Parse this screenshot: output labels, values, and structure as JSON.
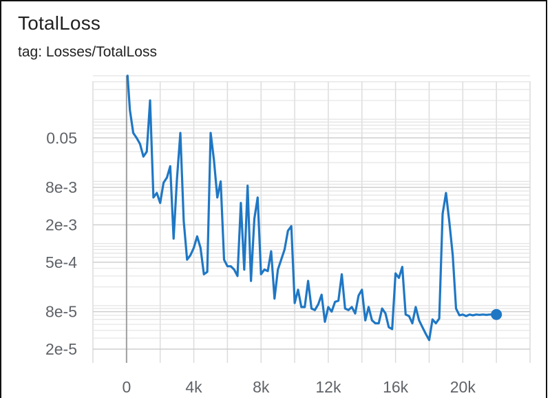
{
  "card": {
    "title": "TotalLoss",
    "subtitle": "tag: Losses/TotalLoss"
  },
  "chart_data": {
    "type": "line",
    "title": "TotalLoss",
    "subtitle": "tag: Losses/TotalLoss",
    "xlabel": "",
    "ylabel": "",
    "yscale": "log",
    "xlim": [
      -2000,
      24000
    ],
    "ylim": [
      1.2e-05,
      0.5
    ],
    "grid": true,
    "x_ticks": [
      {
        "value": 0,
        "label": "0"
      },
      {
        "value": 4000,
        "label": "4k"
      },
      {
        "value": 8000,
        "label": "8k"
      },
      {
        "value": 12000,
        "label": "12k"
      },
      {
        "value": 16000,
        "label": "16k"
      },
      {
        "value": 20000,
        "label": "20k"
      }
    ],
    "y_ticks": [
      {
        "value": 0.05,
        "label": "0.05"
      },
      {
        "value": 0.008,
        "label": "8e-3"
      },
      {
        "value": 0.002,
        "label": "2e-3"
      },
      {
        "value": 0.0005,
        "label": "5e-4"
      },
      {
        "value": 8e-05,
        "label": "8e-5"
      },
      {
        "value": 2e-05,
        "label": "2e-5"
      }
    ],
    "line_color": "#1f77c4",
    "series": [
      {
        "name": "",
        "x": [
          60,
          200,
          400,
          600,
          800,
          1000,
          1200,
          1400,
          1600,
          1800,
          2000,
          2200,
          2400,
          2600,
          2800,
          3000,
          3200,
          3400,
          3600,
          3800,
          4000,
          4200,
          4400,
          4600,
          4800,
          5000,
          5200,
          5400,
          5600,
          5800,
          6000,
          6200,
          6400,
          6600,
          6800,
          7000,
          7200,
          7400,
          7600,
          7800,
          8000,
          8200,
          8400,
          8600,
          8800,
          9000,
          9200,
          9400,
          9600,
          9800,
          10000,
          10200,
          10400,
          10600,
          10800,
          11000,
          11200,
          11400,
          11600,
          11800,
          12000,
          12200,
          12400,
          12600,
          12800,
          13000,
          13200,
          13400,
          13600,
          13800,
          14000,
          14200,
          14400,
          14600,
          14800,
          15000,
          15200,
          15400,
          15600,
          15800,
          16000,
          16200,
          16400,
          16600,
          16800,
          17000,
          17200,
          17400,
          17600,
          17800,
          18000,
          18200,
          18400,
          18600,
          18800,
          19000,
          19200,
          19400,
          19600,
          19800,
          20000,
          20200,
          20400,
          20600,
          20800,
          21000,
          21200,
          21400,
          21600,
          21800,
          22000
        ],
        "y": [
          0.5,
          0.14,
          0.06,
          0.05,
          0.04,
          0.025,
          0.03,
          0.2,
          0.0055,
          0.0065,
          0.0045,
          0.0095,
          0.0115,
          0.0175,
          0.0012,
          0.011,
          0.06,
          0.0023,
          0.00055,
          0.00065,
          0.00085,
          0.0013,
          0.00085,
          0.00032,
          0.00035,
          0.06,
          0.022,
          0.0055,
          0.01,
          0.00055,
          0.00043,
          0.00043,
          0.00038,
          0.0003,
          0.0045,
          0.00038,
          0.0085,
          0.00025,
          0.0025,
          0.0055,
          0.00032,
          0.00038,
          0.00036,
          0.00075,
          0.00013,
          0.00038,
          0.00055,
          0.0008,
          0.0016,
          0.0019,
          0.00011,
          0.00018,
          9.5e-05,
          9.5e-05,
          0.00025,
          9e-05,
          8.5e-05,
          0.000105,
          0.00015,
          5.5e-05,
          9.5e-05,
          8e-05,
          0.000115,
          0.00012,
          0.00032,
          9e-05,
          8.5e-05,
          9.5e-05,
          7.5e-05,
          0.000145,
          0.00018,
          5.8e-05,
          9.5e-05,
          5.8e-05,
          5.2e-05,
          5.2e-05,
          9e-05,
          7.5e-05,
          4.5e-05,
          4.2e-05,
          0.00033,
          0.00028,
          0.00042,
          7.2e-05,
          6.8e-05,
          5.2e-05,
          9.5e-05,
          5.8e-05,
          4.5e-05,
          3.5e-05,
          2.8e-05,
          6e-05,
          5.2e-05,
          6.2e-05,
          0.003,
          0.0065,
          0.0022,
          0.00065,
          9e-05,
          7e-05,
          7.2e-05,
          6.8e-05,
          7.2e-05,
          7e-05,
          7.2e-05,
          7.1e-05,
          7.2e-05,
          7.1e-05,
          7.2e-05,
          7.2e-05,
          7.2e-05
        ],
        "last_point": {
          "x": 22000,
          "y": 7.2e-05
        }
      }
    ]
  }
}
